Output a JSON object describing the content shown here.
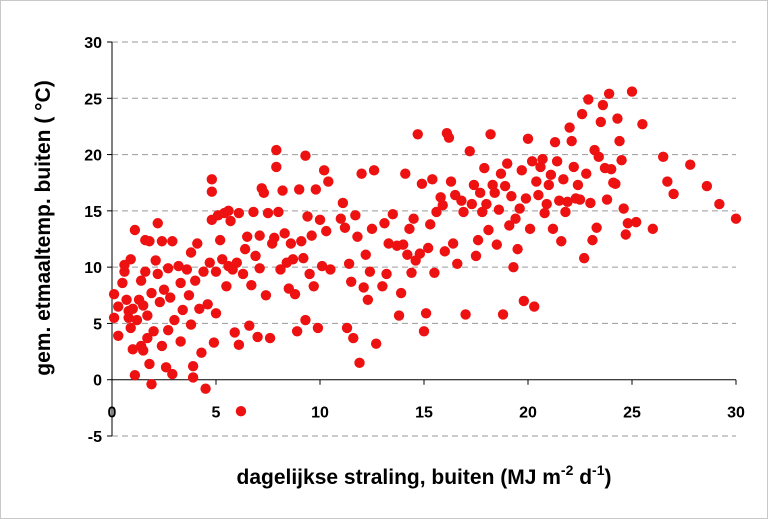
{
  "chart_data": {
    "type": "scatter",
    "xlabel": "dagelijkse straling, buiten (MJ m-2 d-1)",
    "xlabel_parts": {
      "main": "dagelijkse straling, buiten (MJ m",
      "sup1": "-2",
      "mid": " d",
      "sup2": "-1",
      "end": ")"
    },
    "ylabel": "gem. etmaaltemp. buiten ( °C)",
    "xlim": [
      0,
      30
    ],
    "ylim": [
      -5,
      30
    ],
    "xticks": [
      0,
      5,
      10,
      15,
      20,
      25,
      30
    ],
    "yticks": [
      -5,
      0,
      5,
      10,
      15,
      20,
      25,
      30
    ],
    "grid": "horizontal dashed",
    "marker_color": "#ee1111",
    "series": [
      {
        "points": [
          [
            0.1,
            7.6
          ],
          [
            0.1,
            5.5
          ],
          [
            0.3,
            3.9
          ],
          [
            0.3,
            6.5
          ],
          [
            0.5,
            8.6
          ],
          [
            0.6,
            9.6
          ],
          [
            0.6,
            10.2
          ],
          [
            0.7,
            7.1
          ],
          [
            0.8,
            6.1
          ],
          [
            0.8,
            5.5
          ],
          [
            0.9,
            10.7
          ],
          [
            0.9,
            4.6
          ],
          [
            1.0,
            6.3
          ],
          [
            1.0,
            2.7
          ],
          [
            1.1,
            13.3
          ],
          [
            1.1,
            0.4
          ],
          [
            1.2,
            5.3
          ],
          [
            1.3,
            7.1
          ],
          [
            1.4,
            8.8
          ],
          [
            1.4,
            3.0
          ],
          [
            1.5,
            6.6
          ],
          [
            1.5,
            2.6
          ],
          [
            1.6,
            9.6
          ],
          [
            1.6,
            12.4
          ],
          [
            1.7,
            5.7
          ],
          [
            1.7,
            3.7
          ],
          [
            1.8,
            1.4
          ],
          [
            1.8,
            12.3
          ],
          [
            1.9,
            -0.4
          ],
          [
            1.9,
            7.7
          ],
          [
            2.0,
            4.3
          ],
          [
            2.1,
            10.6
          ],
          [
            2.2,
            13.9
          ],
          [
            2.2,
            9.4
          ],
          [
            2.3,
            6.9
          ],
          [
            2.4,
            12.3
          ],
          [
            2.4,
            3.0
          ],
          [
            2.5,
            8.0
          ],
          [
            2.6,
            1.1
          ],
          [
            2.7,
            9.9
          ],
          [
            2.7,
            4.4
          ],
          [
            2.8,
            7.3
          ],
          [
            2.9,
            12.3
          ],
          [
            2.9,
            0.5
          ],
          [
            3.0,
            5.3
          ],
          [
            3.2,
            10.1
          ],
          [
            3.3,
            8.6
          ],
          [
            3.3,
            3.4
          ],
          [
            3.4,
            6.2
          ],
          [
            3.6,
            9.8
          ],
          [
            3.7,
            7.5
          ],
          [
            3.8,
            11.3
          ],
          [
            3.8,
            4.9
          ],
          [
            3.9,
            1.2
          ],
          [
            3.9,
            0.2
          ],
          [
            4.0,
            8.8
          ],
          [
            4.1,
            12.1
          ],
          [
            4.2,
            6.3
          ],
          [
            4.3,
            2.4
          ],
          [
            4.4,
            9.6
          ],
          [
            4.5,
            -0.8
          ],
          [
            4.6,
            6.7
          ],
          [
            4.7,
            10.4
          ],
          [
            4.8,
            17.8
          ],
          [
            4.8,
            16.7
          ],
          [
            4.8,
            14.2
          ],
          [
            4.9,
            3.3
          ],
          [
            5.0,
            9.6
          ],
          [
            5.0,
            5.9
          ],
          [
            5.1,
            14.6
          ],
          [
            5.2,
            12.4
          ],
          [
            5.3,
            10.7
          ],
          [
            5.4,
            14.8
          ],
          [
            5.5,
            8.3
          ],
          [
            5.6,
            15.0
          ],
          [
            5.6,
            10.1
          ],
          [
            5.7,
            14.1
          ],
          [
            5.8,
            9.8
          ],
          [
            5.9,
            4.2
          ],
          [
            6.0,
            10.4
          ],
          [
            6.1,
            14.8
          ],
          [
            6.1,
            3.1
          ],
          [
            6.2,
            -2.8
          ],
          [
            6.3,
            9.4
          ],
          [
            6.4,
            11.6
          ],
          [
            6.5,
            12.7
          ],
          [
            6.6,
            4.8
          ],
          [
            6.7,
            8.4
          ],
          [
            6.8,
            14.9
          ],
          [
            6.9,
            11.0
          ],
          [
            7.0,
            3.8
          ],
          [
            7.1,
            9.9
          ],
          [
            7.1,
            12.8
          ],
          [
            7.2,
            17.0
          ],
          [
            7.3,
            16.6
          ],
          [
            7.4,
            7.5
          ],
          [
            7.5,
            14.8
          ],
          [
            7.6,
            3.7
          ],
          [
            7.7,
            12.1
          ],
          [
            7.8,
            12.6
          ],
          [
            7.9,
            20.4
          ],
          [
            7.9,
            18.9
          ],
          [
            8.0,
            14.9
          ],
          [
            8.1,
            9.8
          ],
          [
            8.2,
            16.8
          ],
          [
            8.3,
            13.0
          ],
          [
            8.4,
            10.4
          ],
          [
            8.5,
            8.1
          ],
          [
            8.6,
            12.1
          ],
          [
            8.7,
            10.7
          ],
          [
            8.8,
            7.6
          ],
          [
            8.9,
            4.3
          ],
          [
            9.0,
            16.9
          ],
          [
            9.1,
            12.3
          ],
          [
            9.2,
            10.8
          ],
          [
            9.3,
            19.9
          ],
          [
            9.3,
            5.3
          ],
          [
            9.4,
            14.5
          ],
          [
            9.5,
            9.4
          ],
          [
            9.6,
            12.8
          ],
          [
            9.7,
            8.3
          ],
          [
            9.8,
            16.9
          ],
          [
            9.9,
            4.6
          ],
          [
            10.0,
            14.2
          ],
          [
            10.1,
            10.1
          ],
          [
            10.2,
            18.6
          ],
          [
            10.3,
            13.2
          ],
          [
            10.4,
            17.6
          ],
          [
            10.5,
            9.8
          ],
          [
            11.0,
            14.3
          ],
          [
            11.1,
            15.7
          ],
          [
            11.2,
            13.5
          ],
          [
            11.3,
            4.6
          ],
          [
            11.4,
            10.3
          ],
          [
            11.5,
            8.7
          ],
          [
            11.6,
            3.7
          ],
          [
            11.7,
            14.6
          ],
          [
            11.8,
            12.7
          ],
          [
            11.9,
            1.5
          ],
          [
            12.0,
            18.3
          ],
          [
            12.1,
            8.2
          ],
          [
            12.2,
            11.1
          ],
          [
            12.3,
            7.1
          ],
          [
            12.4,
            9.6
          ],
          [
            12.5,
            13.4
          ],
          [
            12.6,
            18.6
          ],
          [
            12.7,
            3.2
          ],
          [
            13.0,
            8.3
          ],
          [
            13.1,
            13.9
          ],
          [
            13.2,
            9.4
          ],
          [
            13.3,
            12.1
          ],
          [
            13.5,
            14.7
          ],
          [
            13.7,
            11.9
          ],
          [
            13.8,
            5.7
          ],
          [
            13.9,
            7.7
          ],
          [
            14.0,
            12.0
          ],
          [
            14.1,
            18.3
          ],
          [
            14.2,
            11.1
          ],
          [
            14.3,
            13.4
          ],
          [
            14.4,
            9.5
          ],
          [
            14.5,
            14.3
          ],
          [
            14.6,
            10.6
          ],
          [
            14.7,
            21.8
          ],
          [
            14.8,
            11.2
          ],
          [
            14.9,
            17.4
          ],
          [
            15.0,
            4.3
          ],
          [
            15.1,
            5.9
          ],
          [
            15.2,
            11.7
          ],
          [
            15.3,
            13.8
          ],
          [
            15.4,
            17.8
          ],
          [
            15.5,
            9.5
          ],
          [
            15.6,
            14.9
          ],
          [
            15.8,
            16.2
          ],
          [
            15.9,
            15.5
          ],
          [
            16.0,
            11.4
          ],
          [
            16.1,
            21.9
          ],
          [
            16.2,
            21.5
          ],
          [
            16.3,
            17.6
          ],
          [
            16.4,
            12.1
          ],
          [
            16.5,
            16.4
          ],
          [
            16.6,
            10.3
          ],
          [
            16.8,
            15.9
          ],
          [
            16.9,
            14.9
          ],
          [
            17.0,
            5.8
          ],
          [
            17.2,
            20.3
          ],
          [
            17.3,
            15.6
          ],
          [
            17.4,
            17.3
          ],
          [
            17.5,
            11.0
          ],
          [
            17.6,
            12.4
          ],
          [
            17.7,
            16.6
          ],
          [
            17.8,
            14.9
          ],
          [
            17.9,
            18.8
          ],
          [
            18.0,
            15.6
          ],
          [
            18.1,
            13.3
          ],
          [
            18.2,
            21.8
          ],
          [
            18.3,
            17.3
          ],
          [
            18.4,
            16.6
          ],
          [
            18.5,
            12.0
          ],
          [
            18.6,
            15.1
          ],
          [
            18.7,
            18.3
          ],
          [
            18.8,
            5.8
          ],
          [
            18.9,
            17.2
          ],
          [
            19.0,
            19.2
          ],
          [
            19.1,
            13.7
          ],
          [
            19.2,
            16.3
          ],
          [
            19.3,
            10.0
          ],
          [
            19.4,
            14.3
          ],
          [
            19.5,
            11.6
          ],
          [
            19.6,
            15.2
          ],
          [
            19.7,
            18.6
          ],
          [
            19.8,
            7.0
          ],
          [
            19.9,
            16.1
          ],
          [
            20.0,
            21.4
          ],
          [
            20.1,
            13.4
          ],
          [
            20.2,
            19.4
          ],
          [
            20.3,
            6.5
          ],
          [
            20.4,
            17.6
          ],
          [
            20.5,
            16.4
          ],
          [
            20.6,
            18.9
          ],
          [
            20.7,
            19.6
          ],
          [
            20.8,
            14.8
          ],
          [
            20.9,
            15.6
          ],
          [
            21.0,
            17.3
          ],
          [
            21.1,
            18.2
          ],
          [
            21.2,
            13.4
          ],
          [
            21.3,
            21.1
          ],
          [
            21.4,
            19.4
          ],
          [
            21.5,
            15.9
          ],
          [
            21.6,
            12.3
          ],
          [
            21.7,
            17.8
          ],
          [
            21.8,
            14.9
          ],
          [
            21.9,
            15.8
          ],
          [
            22.0,
            22.4
          ],
          [
            22.1,
            21.2
          ],
          [
            22.2,
            18.9
          ],
          [
            22.3,
            16.1
          ],
          [
            22.4,
            17.3
          ],
          [
            22.5,
            16.0
          ],
          [
            22.6,
            23.6
          ],
          [
            22.7,
            10.8
          ],
          [
            22.8,
            18.3
          ],
          [
            22.9,
            24.9
          ],
          [
            23.0,
            15.7
          ],
          [
            23.1,
            12.4
          ],
          [
            23.2,
            20.4
          ],
          [
            23.3,
            13.5
          ],
          [
            23.4,
            19.8
          ],
          [
            23.5,
            22.9
          ],
          [
            23.6,
            24.4
          ],
          [
            23.7,
            18.8
          ],
          [
            23.8,
            16.0
          ],
          [
            23.9,
            25.4
          ],
          [
            24.0,
            18.7
          ],
          [
            24.1,
            17.5
          ],
          [
            24.2,
            17.4
          ],
          [
            24.3,
            23.2
          ],
          [
            24.4,
            21.2
          ],
          [
            24.5,
            19.5
          ],
          [
            24.6,
            15.2
          ],
          [
            24.7,
            12.9
          ],
          [
            24.8,
            13.9
          ],
          [
            25.0,
            25.6
          ],
          [
            25.2,
            14.0
          ],
          [
            25.5,
            22.7
          ],
          [
            26.0,
            13.4
          ],
          [
            26.5,
            19.8
          ],
          [
            26.7,
            17.6
          ],
          [
            27.0,
            16.5
          ],
          [
            27.8,
            19.1
          ],
          [
            28.6,
            17.2
          ],
          [
            29.2,
            15.6
          ],
          [
            30.0,
            14.3
          ]
        ]
      }
    ]
  }
}
